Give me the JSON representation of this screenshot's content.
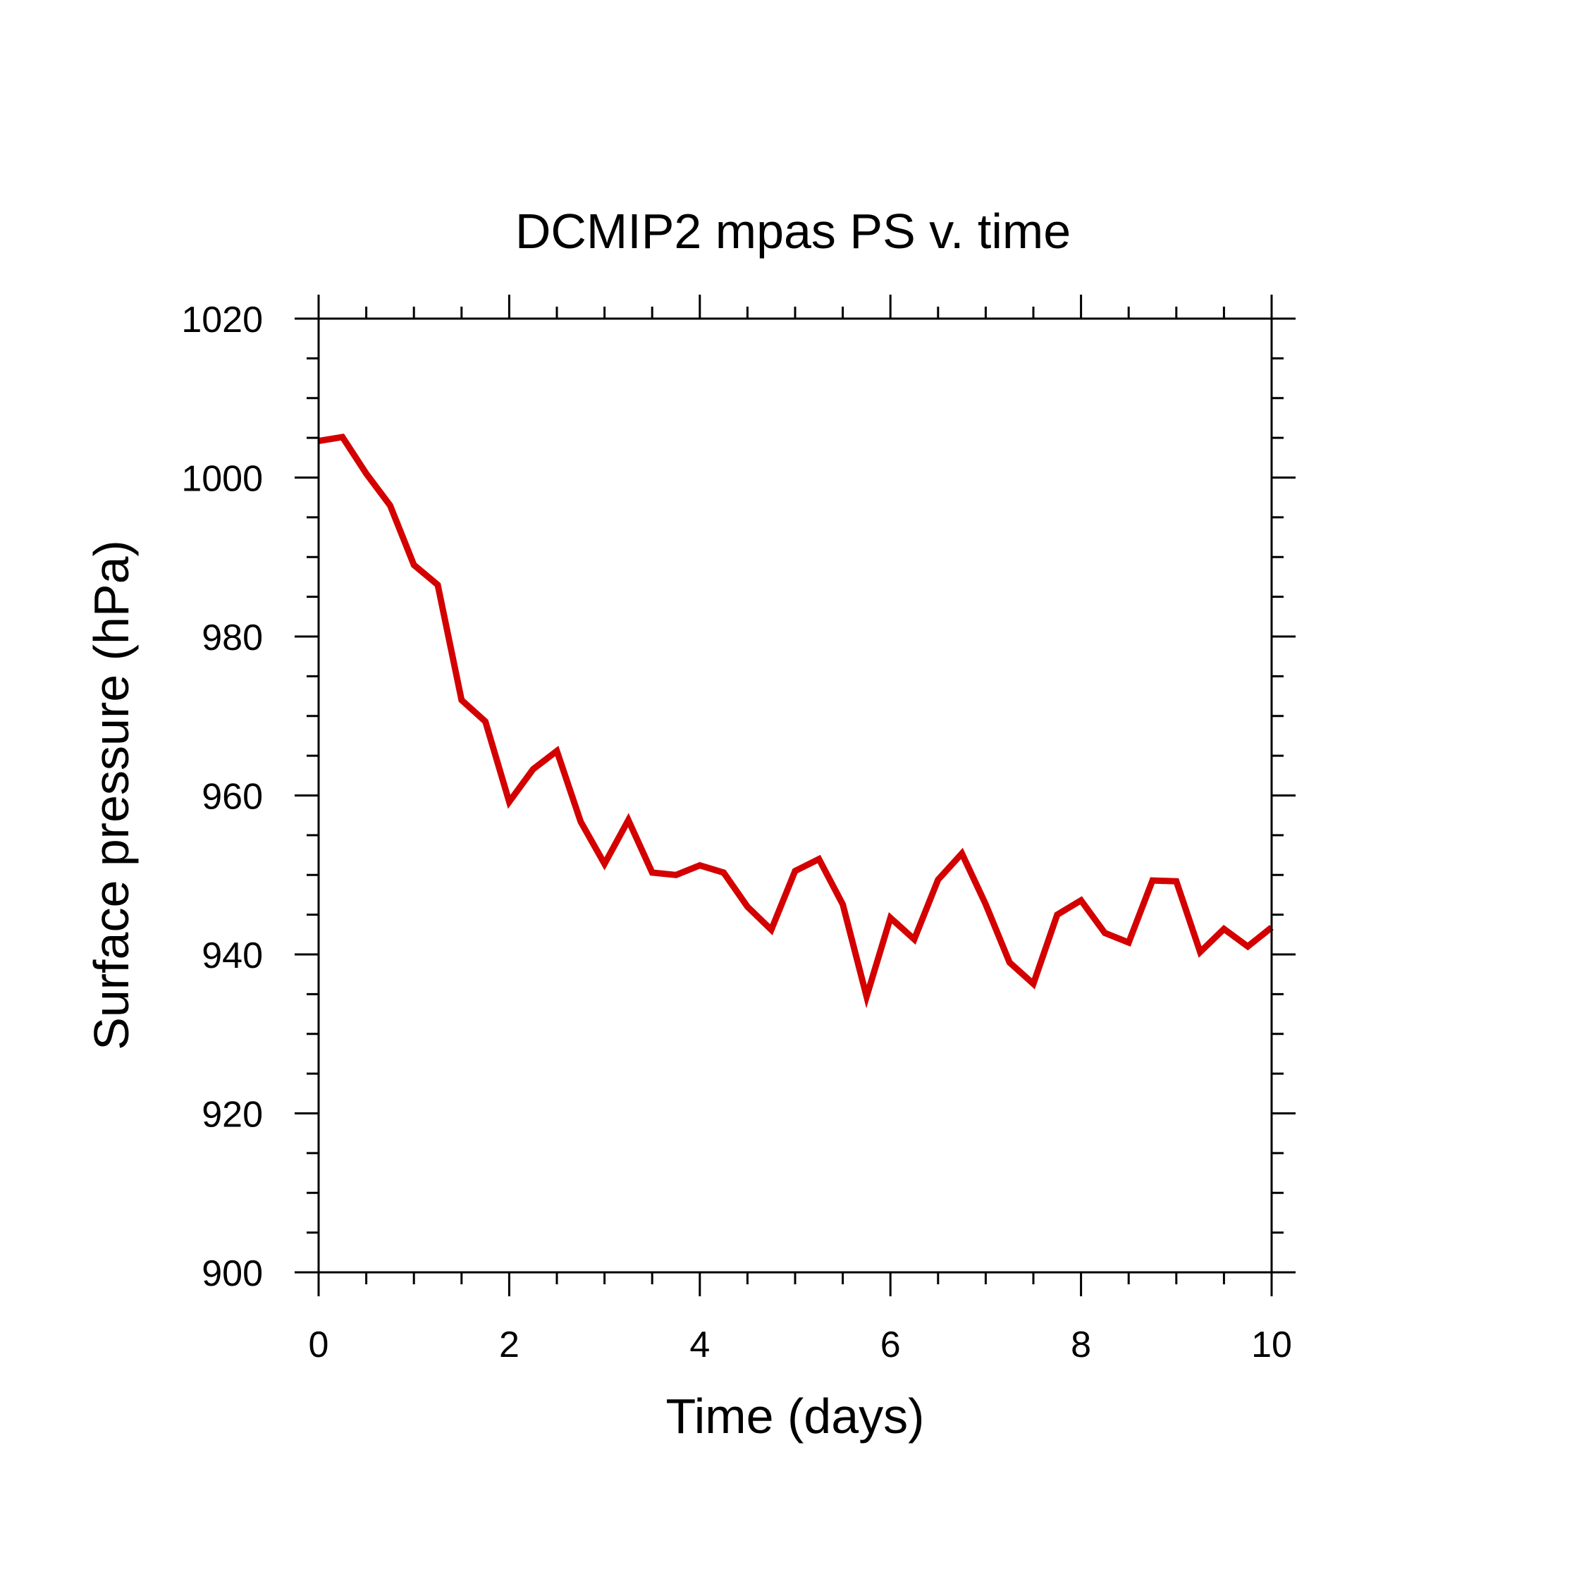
{
  "chart_data": {
    "type": "line",
    "title": "DCMIP2 mpas PS v. time",
    "xlabel": "Time (days)",
    "ylabel": "Surface pressure (hPa)",
    "xlim": [
      0,
      10
    ],
    "ylim": [
      900,
      1020
    ],
    "xticks": [
      0,
      2,
      4,
      6,
      8,
      10
    ],
    "xtick_labels": [
      "0",
      "2",
      "4",
      "6",
      "8",
      "10"
    ],
    "yticks": [
      900,
      920,
      940,
      960,
      980,
      1000,
      1020
    ],
    "ytick_labels": [
      "900",
      "920",
      "940",
      "960",
      "980",
      "1000",
      "1020"
    ],
    "grid": false,
    "series": [
      {
        "color": "#d40000",
        "x": [
          0,
          0.25,
          0.5,
          0.75,
          1.0,
          1.25,
          1.5,
          1.75,
          2.0,
          2.25,
          2.5,
          2.75,
          3.0,
          3.25,
          3.5,
          3.75,
          4.0,
          4.25,
          4.5,
          4.75,
          5.0,
          5.25,
          5.5,
          5.75,
          6.0,
          6.25,
          6.5,
          6.75,
          7.0,
          7.25,
          7.5,
          7.75,
          8.0,
          8.25,
          8.5,
          8.75,
          9.0,
          9.25,
          9.5,
          9.75,
          10.0
        ],
        "y": [
          1004.6,
          1005.1,
          1000.5,
          996.5,
          989.0,
          986.5,
          972.0,
          969.3,
          959.2,
          963.3,
          965.6,
          956.7,
          951.4,
          956.9,
          950.3,
          950.0,
          951.2,
          950.3,
          946.0,
          943.1,
          950.5,
          952.0,
          946.3,
          934.7,
          944.6,
          941.9,
          949.4,
          952.7,
          946.3,
          939.0,
          936.3,
          945.0,
          946.8,
          942.7,
          941.5,
          949.3,
          949.2,
          940.3,
          943.2,
          941.0,
          943.4
        ]
      }
    ]
  }
}
